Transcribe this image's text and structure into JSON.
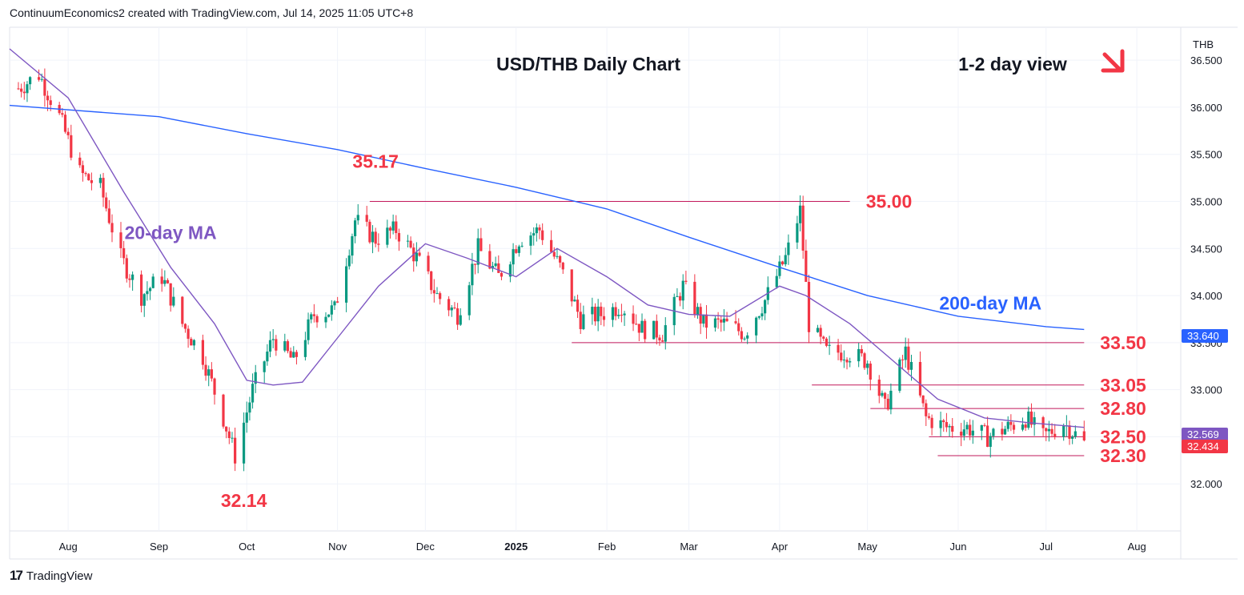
{
  "header": {
    "attribution": "ContinuumEconomics2 created with TradingView.com, Jul 14, 2025 11:05 UTC+8"
  },
  "footer": {
    "brand": "TradingView",
    "logo_icon": "tradingview-logo-icon"
  },
  "colors": {
    "up": "#089981",
    "down": "#f23645",
    "ma20": "#7e57c2",
    "ma200": "#2962ff",
    "annotation": "#f23645",
    "text": "#131722",
    "grid": "#f0f3fa"
  },
  "chart_data": {
    "type": "candlestick",
    "title": "USD/THB Daily Chart",
    "view_label": "1-2 day view",
    "view_icon": "arrow-down-right-icon",
    "currency": "THB",
    "ylim": [
      31.5,
      36.85
    ],
    "y_ticks": [
      "32.000",
      "32.500",
      "33.000",
      "33.500",
      "34.000",
      "34.500",
      "35.000",
      "35.500",
      "36.000",
      "36.500"
    ],
    "x_ticks": [
      {
        "label": "Aug",
        "date": "2024-08-01"
      },
      {
        "label": "Sep",
        "date": "2024-09-01"
      },
      {
        "label": "Oct",
        "date": "2024-10-01"
      },
      {
        "label": "Nov",
        "date": "2024-11-01"
      },
      {
        "label": "Dec",
        "date": "2024-12-01"
      },
      {
        "label": "2025",
        "date": "2025-01-01"
      },
      {
        "label": "Feb",
        "date": "2025-02-01"
      },
      {
        "label": "Mar",
        "date": "2025-03-01"
      },
      {
        "label": "Apr",
        "date": "2025-04-01"
      },
      {
        "label": "May",
        "date": "2025-05-01"
      },
      {
        "label": "Jun",
        "date": "2025-06-01"
      },
      {
        "label": "Jul",
        "date": "2025-07-01"
      },
      {
        "label": "Aug",
        "date": "2025-08-01"
      }
    ],
    "x_range": [
      "2024-07-12",
      "2025-08-16"
    ],
    "candles_close": [
      {
        "date": "2024-07-15",
        "close": 36.2
      },
      {
        "date": "2024-07-22",
        "close": 36.35
      },
      {
        "date": "2024-07-29",
        "close": 35.9
      },
      {
        "date": "2024-08-05",
        "close": 35.3
      },
      {
        "date": "2024-08-12",
        "close": 35.15
      },
      {
        "date": "2024-08-19",
        "close": 34.4
      },
      {
        "date": "2024-08-26",
        "close": 34.0
      },
      {
        "date": "2024-09-02",
        "close": 34.2
      },
      {
        "date": "2024-09-09",
        "close": 33.7
      },
      {
        "date": "2024-09-16",
        "close": 33.35
      },
      {
        "date": "2024-09-23",
        "close": 32.7
      },
      {
        "date": "2024-09-27",
        "close": 32.3
      },
      {
        "date": "2024-10-03",
        "close": 33.0
      },
      {
        "date": "2024-10-10",
        "close": 33.55
      },
      {
        "date": "2024-10-17",
        "close": 33.3
      },
      {
        "date": "2024-10-24",
        "close": 33.8
      },
      {
        "date": "2024-10-31",
        "close": 33.85
      },
      {
        "date": "2024-11-07",
        "close": 34.8
      },
      {
        "date": "2024-11-14",
        "close": 34.6
      },
      {
        "date": "2024-11-21",
        "close": 34.7
      },
      {
        "date": "2024-11-28",
        "close": 34.4
      },
      {
        "date": "2024-12-05",
        "close": 34.0
      },
      {
        "date": "2024-12-12",
        "close": 33.8
      },
      {
        "date": "2024-12-19",
        "close": 34.5
      },
      {
        "date": "2024-12-26",
        "close": 34.2
      },
      {
        "date": "2025-01-02",
        "close": 34.6
      },
      {
        "date": "2025-01-09",
        "close": 34.7
      },
      {
        "date": "2025-01-16",
        "close": 34.3
      },
      {
        "date": "2025-01-23",
        "close": 33.75
      },
      {
        "date": "2025-01-30",
        "close": 33.8
      },
      {
        "date": "2025-02-06",
        "close": 33.9
      },
      {
        "date": "2025-02-13",
        "close": 33.65
      },
      {
        "date": "2025-02-20",
        "close": 33.6
      },
      {
        "date": "2025-02-27",
        "close": 34.1
      },
      {
        "date": "2025-03-06",
        "close": 33.7
      },
      {
        "date": "2025-03-13",
        "close": 33.7
      },
      {
        "date": "2025-03-20",
        "close": 33.6
      },
      {
        "date": "2025-03-27",
        "close": 33.95
      },
      {
        "date": "2025-04-03",
        "close": 34.4
      },
      {
        "date": "2025-04-08",
        "close": 34.9
      },
      {
        "date": "2025-04-11",
        "close": 33.7
      },
      {
        "date": "2025-04-17",
        "close": 33.4
      },
      {
        "date": "2025-04-24",
        "close": 33.4
      },
      {
        "date": "2025-05-01",
        "close": 33.3
      },
      {
        "date": "2025-05-07",
        "close": 32.8
      },
      {
        "date": "2025-05-14",
        "close": 33.4
      },
      {
        "date": "2025-05-21",
        "close": 32.7
      },
      {
        "date": "2025-05-28",
        "close": 32.6
      },
      {
        "date": "2025-06-04",
        "close": 32.6
      },
      {
        "date": "2025-06-11",
        "close": 32.5
      },
      {
        "date": "2025-06-18",
        "close": 32.6
      },
      {
        "date": "2025-06-24",
        "close": 32.7
      },
      {
        "date": "2025-06-30",
        "close": 32.5
      },
      {
        "date": "2025-07-07",
        "close": 32.65
      },
      {
        "date": "2025-07-14",
        "close": 32.43
      }
    ],
    "series": [
      {
        "name": "20-day MA",
        "color": "#7e57c2"
      },
      {
        "name": "200-day MA",
        "color": "#2962ff"
      }
    ],
    "ma200": [
      {
        "date": "2024-07-12",
        "v": 36.02
      },
      {
        "date": "2024-09-01",
        "v": 35.9
      },
      {
        "date": "2024-10-01",
        "v": 35.72
      },
      {
        "date": "2024-11-01",
        "v": 35.55
      },
      {
        "date": "2024-12-01",
        "v": 35.35
      },
      {
        "date": "2025-01-01",
        "v": 35.15
      },
      {
        "date": "2025-02-01",
        "v": 34.92
      },
      {
        "date": "2025-03-01",
        "v": 34.62
      },
      {
        "date": "2025-04-01",
        "v": 34.3
      },
      {
        "date": "2025-05-01",
        "v": 34.0
      },
      {
        "date": "2025-06-01",
        "v": 33.78
      },
      {
        "date": "2025-07-01",
        "v": 33.67
      },
      {
        "date": "2025-07-14",
        "v": 33.64
      }
    ],
    "ma20": [
      {
        "date": "2024-07-12",
        "v": 36.62
      },
      {
        "date": "2024-08-01",
        "v": 36.1
      },
      {
        "date": "2024-08-20",
        "v": 35.1
      },
      {
        "date": "2024-09-05",
        "v": 34.3
      },
      {
        "date": "2024-09-20",
        "v": 33.7
      },
      {
        "date": "2024-10-01",
        "v": 33.1
      },
      {
        "date": "2024-10-10",
        "v": 33.05
      },
      {
        "date": "2024-10-20",
        "v": 33.08
      },
      {
        "date": "2024-11-01",
        "v": 33.55
      },
      {
        "date": "2024-11-15",
        "v": 34.1
      },
      {
        "date": "2024-12-01",
        "v": 34.55
      },
      {
        "date": "2024-12-15",
        "v": 34.4
      },
      {
        "date": "2025-01-01",
        "v": 34.2
      },
      {
        "date": "2025-01-15",
        "v": 34.5
      },
      {
        "date": "2025-02-01",
        "v": 34.2
      },
      {
        "date": "2025-02-15",
        "v": 33.9
      },
      {
        "date": "2025-03-01",
        "v": 33.8
      },
      {
        "date": "2025-03-15",
        "v": 33.78
      },
      {
        "date": "2025-04-01",
        "v": 34.1
      },
      {
        "date": "2025-04-10",
        "v": 34.0
      },
      {
        "date": "2025-04-25",
        "v": 33.7
      },
      {
        "date": "2025-05-10",
        "v": 33.3
      },
      {
        "date": "2025-05-25",
        "v": 32.9
      },
      {
        "date": "2025-06-10",
        "v": 32.7
      },
      {
        "date": "2025-06-25",
        "v": 32.65
      },
      {
        "date": "2025-07-14",
        "v": 32.6
      }
    ],
    "last_prices": [
      {
        "value": "33.640",
        "color": "#2962ff"
      },
      {
        "value": "32.569",
        "color": "#7e57c2"
      },
      {
        "value": "32.434",
        "color": "#f23645"
      }
    ],
    "horizontal_levels": [
      {
        "label": "35.00",
        "value": 35.0,
        "from": "2024-11-12",
        "to": "2025-04-25"
      },
      {
        "label": "33.50",
        "value": 33.5,
        "from": "2025-01-20",
        "to": "2025-07-14"
      },
      {
        "label": "33.05",
        "value": 33.05,
        "from": "2025-04-12",
        "to": "2025-07-14"
      },
      {
        "label": "32.80",
        "value": 32.8,
        "from": "2025-05-02",
        "to": "2025-07-14"
      },
      {
        "label": "32.50",
        "value": 32.5,
        "from": "2025-05-22",
        "to": "2025-07-14"
      },
      {
        "label": "32.30",
        "value": 32.3,
        "from": "2025-05-25",
        "to": "2025-07-14"
      }
    ],
    "annotations": [
      {
        "label": "35.17",
        "date": "2024-11-14",
        "value": 35.17,
        "pos": "above"
      },
      {
        "label": "32.14",
        "date": "2024-09-30",
        "value": 32.14,
        "pos": "below"
      },
      {
        "label": "20-day MA",
        "date": "2024-09-05",
        "value": 34.6,
        "color": "#7e57c2"
      },
      {
        "label": "200-day MA",
        "date": "2025-06-12",
        "value": 33.85,
        "color": "#2962ff"
      }
    ]
  }
}
